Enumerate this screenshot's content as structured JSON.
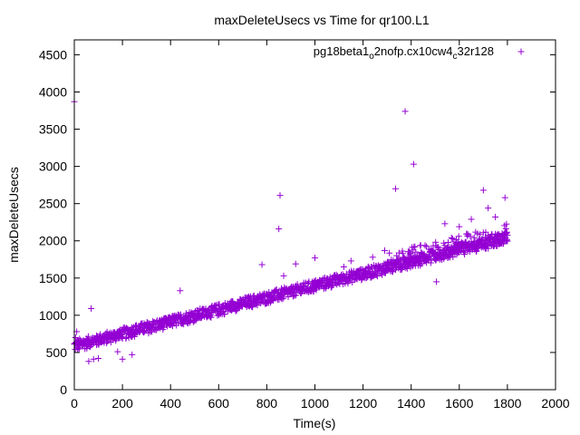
{
  "chart_data": {
    "type": "scatter",
    "title": "maxDeleteUsecs vs Time for qr100.L1",
    "xlabel": "Time(s)",
    "ylabel": "maxDeleteUsecs",
    "xlim": [
      0,
      2000
    ],
    "ylim": [
      0,
      4700
    ],
    "xticks": [
      0,
      200,
      400,
      600,
      800,
      1000,
      1200,
      1400,
      1600,
      1800,
      2000
    ],
    "yticks": [
      0,
      500,
      1000,
      1500,
      2000,
      2500,
      3000,
      3500,
      4000,
      4500
    ],
    "grid": false,
    "legend_position": "top-right",
    "marker": "plus",
    "series": [
      {
        "name": "pg18beta1_o2nofp.cx10cw4_c32r128",
        "name_parts": [
          "pg18beta1",
          "o",
          "2nofp.cx10cw4",
          "c",
          "32r128"
        ],
        "color": "#9400d3",
        "trend": {
          "x_range": [
            0,
            1800
          ],
          "start": 580,
          "end": 2030,
          "spread_low": 70,
          "spread_high": 90,
          "upper_band_start": 1300,
          "upper_band_offset": 170
        },
        "outliers": [
          [
            0,
            3870
          ],
          [
            1375,
            3740
          ],
          [
            1410,
            3030
          ],
          [
            1335,
            2700
          ],
          [
            855,
            2610
          ],
          [
            850,
            2160
          ],
          [
            1790,
            2580
          ],
          [
            1700,
            2680
          ],
          [
            1505,
            1450
          ],
          [
            70,
            1090
          ],
          [
            80,
            410
          ],
          [
            60,
            380
          ],
          [
            100,
            420
          ],
          [
            200,
            410
          ],
          [
            240,
            470
          ],
          [
            180,
            510
          ],
          [
            440,
            1330
          ],
          [
            780,
            1680
          ],
          [
            870,
            1530
          ],
          [
            920,
            1690
          ],
          [
            1000,
            1770
          ],
          [
            1120,
            1650
          ],
          [
            1150,
            1730
          ],
          [
            1240,
            1780
          ],
          [
            1290,
            1870
          ],
          [
            1540,
            2230
          ],
          [
            1600,
            2190
          ],
          [
            1650,
            2290
          ],
          [
            1720,
            2440
          ],
          [
            1750,
            2320
          ],
          [
            10,
            780
          ],
          [
            5,
            700
          ],
          [
            15,
            650
          ]
        ]
      }
    ]
  }
}
